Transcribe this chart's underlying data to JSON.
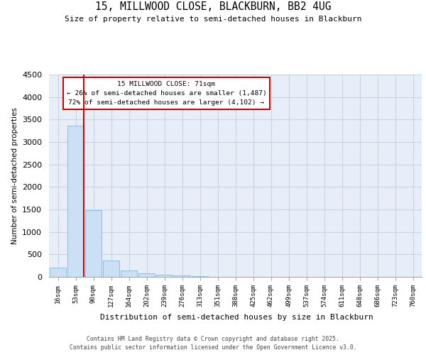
{
  "title_line1": "15, MILLWOOD CLOSE, BLACKBURN, BB2 4UG",
  "title_line2": "Size of property relative to semi-detached houses in Blackburn",
  "xlabel": "Distribution of semi-detached houses by size in Blackburn",
  "ylabel": "Number of semi-detached properties",
  "annotation_title": "15 MILLWOOD CLOSE: 71sqm",
  "annotation_line2": "← 26% of semi-detached houses are smaller (1,487)",
  "annotation_line3": "72% of semi-detached houses are larger (4,102) →",
  "footer_line1": "Contains HM Land Registry data © Crown copyright and database right 2025.",
  "footer_line2": "Contains public sector information licensed under the Open Government Licence v3.0.",
  "categories": [
    "16sqm",
    "53sqm",
    "90sqm",
    "127sqm",
    "164sqm",
    "202sqm",
    "239sqm",
    "276sqm",
    "313sqm",
    "351sqm",
    "388sqm",
    "425sqm",
    "462sqm",
    "499sqm",
    "537sqm",
    "574sqm",
    "611sqm",
    "648sqm",
    "686sqm",
    "723sqm",
    "760sqm"
  ],
  "bar_heights": [
    200,
    3370,
    1490,
    360,
    140,
    80,
    50,
    30,
    10,
    0,
    0,
    0,
    0,
    0,
    0,
    0,
    0,
    0,
    0,
    0,
    0
  ],
  "bar_color": "#cce0f5",
  "bar_edge_color": "#7ab8e0",
  "grid_color": "#c8d4e4",
  "background_color": "#e8eef8",
  "vline_color": "#cc0000",
  "annotation_box_color": "#cc0000",
  "ylim": [
    0,
    4500
  ],
  "yticks": [
    0,
    500,
    1000,
    1500,
    2000,
    2500,
    3000,
    3500,
    4000,
    4500
  ]
}
